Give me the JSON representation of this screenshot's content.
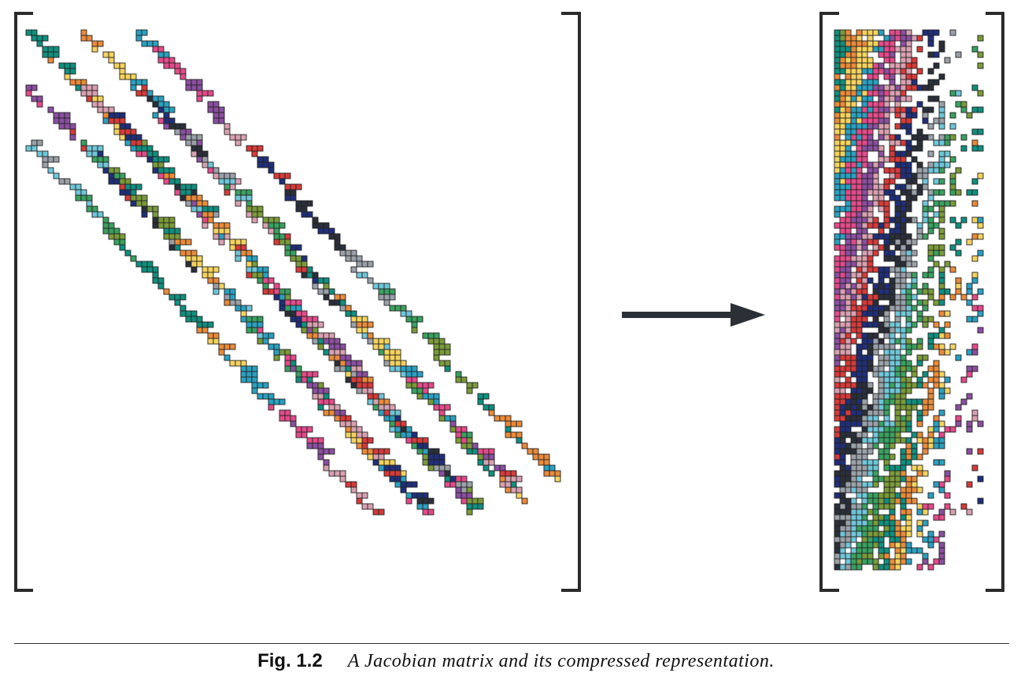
{
  "caption": {
    "label": "Fig. 1.2",
    "text": "A Jacobian matrix and its compressed representation."
  },
  "palette": [
    "#7a9a3a",
    "#0f8f7f",
    "#e98a3a",
    "#f4d35e",
    "#2aa0c0",
    "#e34a8a",
    "#8a4fa0",
    "#d8a0b0",
    "#d63a3a",
    "#1f2f7a",
    "#2a2f3a",
    "#9aa0a8",
    "#6ec6d8",
    "#3aa060"
  ],
  "colors": {
    "bracket": "#2b2b2b",
    "arrow": "#2b2f36",
    "cell_border": "#222222"
  }
}
